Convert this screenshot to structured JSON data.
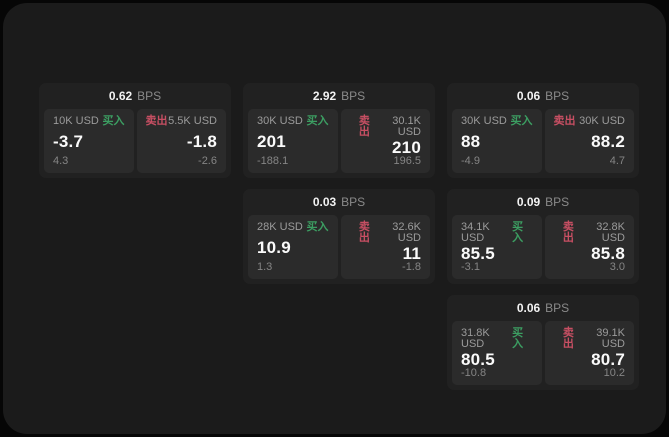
{
  "colors": {
    "buy_green": "#3c9e62",
    "sell_red": "#c74f63",
    "window_bg": "#1b1b1b",
    "card_bg": "#212121",
    "panel_bg": "#2b2b2b"
  },
  "labels": {
    "bps_unit": "BPS",
    "buy": "买入",
    "sell": "卖出"
  },
  "cards": [
    {
      "bps": "0.62",
      "buy": {
        "amount": "10K USD",
        "price": "-3.7",
        "delta": "4.3"
      },
      "sell": {
        "amount": "5.5K USD",
        "price": "-1.8",
        "delta": "-2.6"
      }
    },
    {
      "bps": "2.92",
      "buy": {
        "amount": "30K USD",
        "price": "201",
        "delta": "-188.1"
      },
      "sell": {
        "amount": "30.1K USD",
        "price": "210",
        "delta": "196.5"
      }
    },
    {
      "bps": "0.06",
      "buy": {
        "amount": "30K USD",
        "price": "88",
        "delta": "-4.9"
      },
      "sell": {
        "amount": "30K USD",
        "price": "88.2",
        "delta": "4.7"
      }
    },
    {
      "bps": "0.03",
      "buy": {
        "amount": "28K USD",
        "price": "10.9",
        "delta": "1.3"
      },
      "sell": {
        "amount": "32.6K USD",
        "price": "11",
        "delta": "-1.8"
      }
    },
    {
      "bps": "0.09",
      "buy": {
        "amount": "34.1K USD",
        "price": "85.5",
        "delta": "-3.1"
      },
      "sell": {
        "amount": "32.8K USD",
        "price": "85.8",
        "delta": "3.0"
      }
    },
    {
      "bps": "0.06",
      "buy": {
        "amount": "31.8K USD",
        "price": "80.5",
        "delta": "-10.8"
      },
      "sell": {
        "amount": "39.1K USD",
        "price": "80.7",
        "delta": "10.2"
      }
    }
  ]
}
